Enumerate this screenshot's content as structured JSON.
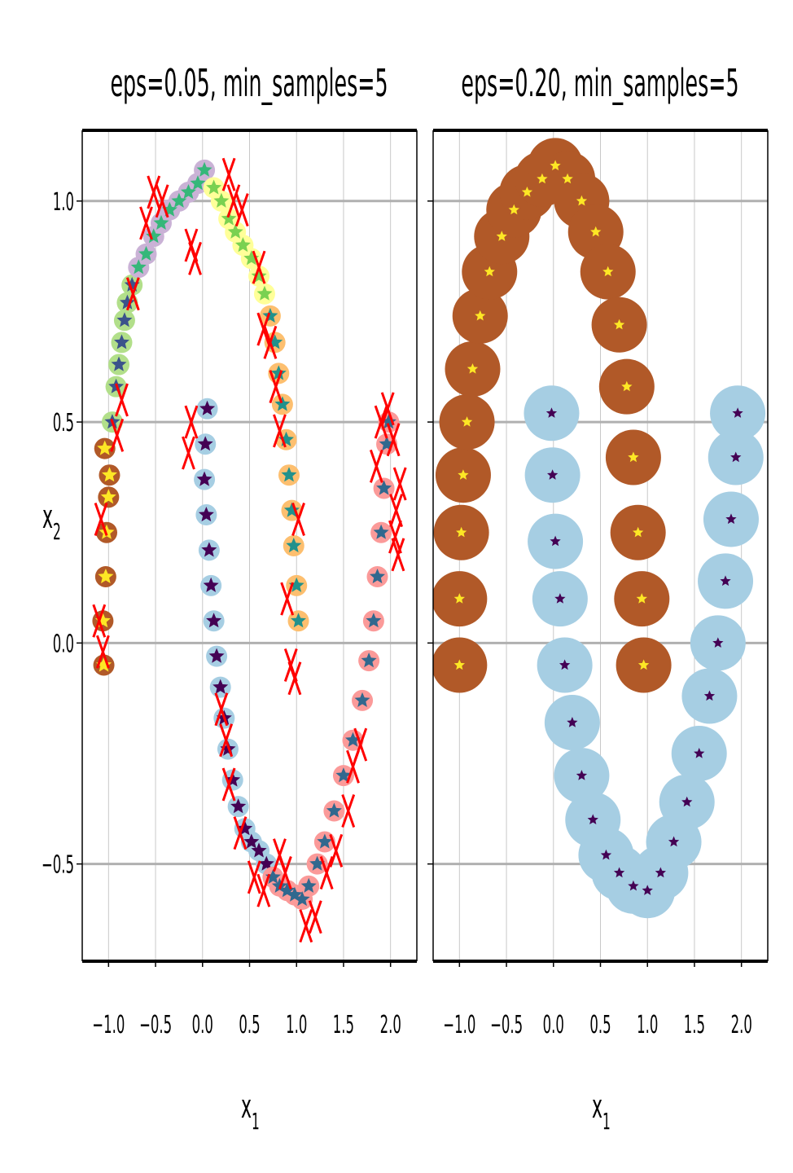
{
  "chart_data": [
    {
      "type": "scatter",
      "title": "eps=0.05, min_samples=5",
      "xlabel": "x1",
      "xlabel_main": "x",
      "xlabel_sub": "1",
      "ylabel": "x2",
      "ylabel_main": "x",
      "ylabel_sub": "2",
      "xlim": [
        -1.28,
        2.28
      ],
      "ylim": [
        -0.72,
        1.16
      ],
      "xticks": [
        -1.0,
        -0.5,
        0.0,
        0.5,
        1.0,
        1.5,
        2.0
      ],
      "xtick_labels": [
        "−1.0",
        "−0.5",
        "0.0",
        "0.5",
        "1.0",
        "1.5",
        "2.0"
      ],
      "yticks": [
        -0.5,
        0.0,
        0.5,
        1.0
      ],
      "ytick_labels": [
        "−0.5",
        "0.0",
        "0.5",
        "1.0"
      ],
      "show_ytick_labels": true,
      "grid": true,
      "clusters": [
        {
          "halo": "#b15928",
          "core": "#fde725",
          "points": [
            [
              -1.05,
              -0.05
            ],
            [
              -1.06,
              0.05
            ],
            [
              -1.03,
              0.15
            ],
            [
              -1.02,
              0.25
            ],
            [
              -1.0,
              0.33
            ],
            [
              -0.99,
              0.38
            ],
            [
              -1.04,
              0.44
            ]
          ]
        },
        {
          "halo": "#b2df8a",
          "core": "#3b528b",
          "points": [
            [
              -0.96,
              0.5
            ],
            [
              -0.92,
              0.58
            ],
            [
              -0.89,
              0.63
            ],
            [
              -0.86,
              0.68
            ],
            [
              -0.83,
              0.73
            ],
            [
              -0.8,
              0.77
            ],
            [
              -0.75,
              0.81
            ]
          ]
        },
        {
          "halo": "#cab2d6",
          "core": "#35b779",
          "points": [
            [
              -0.68,
              0.85
            ],
            [
              -0.6,
              0.88
            ],
            [
              -0.52,
              0.92
            ],
            [
              -0.44,
              0.95
            ],
            [
              -0.35,
              0.98
            ],
            [
              -0.25,
              1.0
            ],
            [
              -0.15,
              1.02
            ],
            [
              -0.05,
              1.04
            ],
            [
              0.02,
              1.07
            ]
          ]
        },
        {
          "halo": "#ffff99",
          "core": "#7ad151",
          "points": [
            [
              0.12,
              1.03
            ],
            [
              0.2,
              1.0
            ],
            [
              0.28,
              0.96
            ],
            [
              0.35,
              0.93
            ],
            [
              0.43,
              0.9
            ],
            [
              0.52,
              0.87
            ],
            [
              0.6,
              0.83
            ],
            [
              0.66,
              0.79
            ]
          ]
        },
        {
          "halo": "#fdbf6f",
          "core": "#21918c",
          "points": [
            [
              0.72,
              0.74
            ],
            [
              0.77,
              0.68
            ],
            [
              0.81,
              0.61
            ],
            [
              0.85,
              0.54
            ],
            [
              0.89,
              0.46
            ],
            [
              0.92,
              0.38
            ],
            [
              0.95,
              0.3
            ],
            [
              0.97,
              0.22
            ],
            [
              1.0,
              0.13
            ],
            [
              1.02,
              0.05
            ]
          ]
        },
        {
          "halo": "#a6cee3",
          "core": "#440154",
          "points": [
            [
              0.05,
              0.53
            ],
            [
              0.03,
              0.45
            ],
            [
              0.02,
              0.37
            ],
            [
              0.04,
              0.29
            ],
            [
              0.07,
              0.21
            ],
            [
              0.09,
              0.13
            ],
            [
              0.12,
              0.05
            ],
            [
              0.15,
              -0.03
            ],
            [
              0.19,
              -0.1
            ],
            [
              0.23,
              -0.17
            ],
            [
              0.27,
              -0.24
            ],
            [
              0.32,
              -0.31
            ],
            [
              0.38,
              -0.37
            ],
            [
              0.45,
              -0.42
            ],
            [
              0.52,
              -0.45
            ],
            [
              0.6,
              -0.47
            ],
            [
              0.68,
              -0.5
            ]
          ]
        },
        {
          "halo": "#fb9a99",
          "core": "#31688e",
          "points": [
            [
              0.75,
              -0.53
            ],
            [
              0.82,
              -0.55
            ],
            [
              0.9,
              -0.56
            ],
            [
              0.98,
              -0.57
            ],
            [
              1.06,
              -0.58
            ],
            [
              1.13,
              -0.55
            ],
            [
              1.22,
              -0.5
            ],
            [
              1.3,
              -0.45
            ],
            [
              1.4,
              -0.38
            ],
            [
              1.5,
              -0.3
            ],
            [
              1.6,
              -0.22
            ],
            [
              1.7,
              -0.13
            ],
            [
              1.77,
              -0.04
            ],
            [
              1.82,
              0.05
            ],
            [
              1.86,
              0.15
            ],
            [
              1.9,
              0.25
            ],
            [
              1.93,
              0.35
            ],
            [
              1.96,
              0.45
            ],
            [
              1.98,
              0.5
            ]
          ]
        }
      ],
      "noise_color": "#ff0000",
      "noise": [
        [
          -1.1,
          0.05
        ],
        [
          -1.08,
          0.28
        ],
        [
          -1.06,
          -0.02
        ],
        [
          -0.91,
          0.47
        ],
        [
          -0.86,
          0.55
        ],
        [
          -0.74,
          0.79
        ],
        [
          -0.6,
          0.95
        ],
        [
          -0.52,
          1.02
        ],
        [
          -0.43,
          1.0
        ],
        [
          -0.12,
          0.9
        ],
        [
          -0.08,
          0.87
        ],
        [
          -0.15,
          0.43
        ],
        [
          -0.12,
          0.5
        ],
        [
          0.28,
          1.06
        ],
        [
          0.33,
          1.0
        ],
        [
          0.42,
          0.98
        ],
        [
          0.6,
          0.85
        ],
        [
          0.65,
          0.71
        ],
        [
          0.72,
          0.68
        ],
        [
          0.78,
          0.58
        ],
        [
          0.82,
          0.48
        ],
        [
          1.02,
          0.28
        ],
        [
          0.9,
          0.1
        ],
        [
          0.94,
          -0.05
        ],
        [
          0.98,
          -0.08
        ],
        [
          0.2,
          -0.15
        ],
        [
          0.25,
          -0.22
        ],
        [
          0.28,
          -0.32
        ],
        [
          0.4,
          -0.43
        ],
        [
          0.55,
          -0.53
        ],
        [
          0.65,
          -0.56
        ],
        [
          0.82,
          -0.48
        ],
        [
          0.88,
          -0.52
        ],
        [
          1.1,
          -0.64
        ],
        [
          1.2,
          -0.62
        ],
        [
          1.32,
          -0.52
        ],
        [
          1.42,
          -0.47
        ],
        [
          1.55,
          -0.38
        ],
        [
          1.6,
          -0.28
        ],
        [
          1.68,
          -0.23
        ],
        [
          1.85,
          0.4
        ],
        [
          1.9,
          0.5
        ],
        [
          1.97,
          0.53
        ],
        [
          2.03,
          0.46
        ],
        [
          2.06,
          0.3
        ],
        [
          2.1,
          0.36
        ],
        [
          2.05,
          0.24
        ],
        [
          2.08,
          0.2
        ]
      ]
    },
    {
      "type": "scatter",
      "title": "eps=0.20, min_samples=5",
      "xlabel": "x1",
      "xlabel_main": "x",
      "xlabel_sub": "1",
      "ylabel": "",
      "xlim": [
        -1.28,
        2.28
      ],
      "ylim": [
        -0.72,
        1.16
      ],
      "xticks": [
        -1.0,
        -0.5,
        0.0,
        0.5,
        1.0,
        1.5,
        2.0
      ],
      "xtick_labels": [
        "−1.0",
        "−0.5",
        "0.0",
        "0.5",
        "1.0",
        "1.5",
        "2.0"
      ],
      "yticks": [
        -0.5,
        0.0,
        0.5,
        1.0
      ],
      "ytick_labels": [],
      "show_ytick_labels": false,
      "grid": true,
      "clusters": [
        {
          "halo": "#b15928",
          "core": "#fde725",
          "points": [
            [
              -1.0,
              -0.05
            ],
            [
              -1.0,
              0.1
            ],
            [
              -0.98,
              0.25
            ],
            [
              -0.96,
              0.38
            ],
            [
              -0.92,
              0.5
            ],
            [
              -0.86,
              0.62
            ],
            [
              -0.78,
              0.74
            ],
            [
              -0.68,
              0.84
            ],
            [
              -0.55,
              0.92
            ],
            [
              -0.42,
              0.98
            ],
            [
              -0.28,
              1.02
            ],
            [
              -0.12,
              1.05
            ],
            [
              0.02,
              1.08
            ],
            [
              0.15,
              1.05
            ],
            [
              0.3,
              1.0
            ],
            [
              0.45,
              0.93
            ],
            [
              0.58,
              0.84
            ],
            [
              0.7,
              0.72
            ],
            [
              0.78,
              0.58
            ],
            [
              0.85,
              0.42
            ],
            [
              0.9,
              0.25
            ],
            [
              0.94,
              0.1
            ],
            [
              0.96,
              -0.05
            ]
          ]
        },
        {
          "halo": "#a6cee3",
          "core": "#440154",
          "points": [
            [
              -0.02,
              0.52
            ],
            [
              -0.01,
              0.38
            ],
            [
              0.02,
              0.23
            ],
            [
              0.07,
              0.1
            ],
            [
              0.12,
              -0.05
            ],
            [
              0.2,
              -0.18
            ],
            [
              0.3,
              -0.3
            ],
            [
              0.42,
              -0.4
            ],
            [
              0.56,
              -0.48
            ],
            [
              0.7,
              -0.52
            ],
            [
              0.85,
              -0.55
            ],
            [
              1.0,
              -0.56
            ],
            [
              1.14,
              -0.52
            ],
            [
              1.28,
              -0.45
            ],
            [
              1.42,
              -0.36
            ],
            [
              1.55,
              -0.25
            ],
            [
              1.66,
              -0.12
            ],
            [
              1.75,
              0.0
            ],
            [
              1.83,
              0.14
            ],
            [
              1.89,
              0.28
            ],
            [
              1.94,
              0.42
            ],
            [
              1.96,
              0.52
            ]
          ]
        }
      ],
      "noise_color": "#ff0000",
      "noise": []
    }
  ]
}
